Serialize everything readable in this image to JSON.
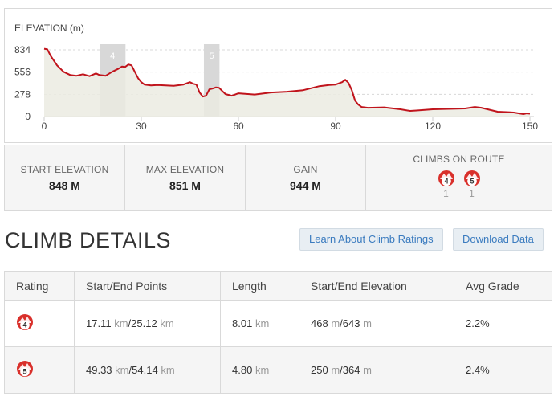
{
  "elevation_chart": {
    "title": "ELEVATION (m)",
    "colors": {
      "line": "#c0141c",
      "fill": "#ebebe2",
      "climb_band": "#d8d8d8",
      "grid": "#d8d8d8"
    }
  },
  "chart_data": {
    "type": "area",
    "title": "ELEVATION (m)",
    "xlabel": "",
    "ylabel": "",
    "xlim": [
      0,
      150
    ],
    "ylim": [
      0,
      834
    ],
    "x_ticks": [
      "0",
      "30",
      "60",
      "90",
      "120",
      "150"
    ],
    "y_ticks": [
      "0",
      "278",
      "556",
      "834"
    ],
    "grid": true,
    "series": [
      {
        "x": [
          0,
          1,
          2,
          4,
          6,
          8,
          10,
          12,
          14,
          16,
          17,
          19,
          21,
          23,
          24,
          25,
          26,
          27,
          28,
          29,
          30,
          31,
          33,
          35,
          40,
          43,
          45,
          46,
          47,
          48,
          49,
          50,
          51,
          52,
          53,
          54,
          55,
          56,
          58,
          60,
          65,
          70,
          75,
          80,
          85,
          88,
          90,
          92,
          93,
          94,
          95,
          96,
          97,
          98,
          100,
          105,
          110,
          113,
          115,
          120,
          125,
          130,
          133,
          135,
          140,
          145,
          148,
          149,
          150
        ],
        "y": [
          848,
          840,
          760,
          640,
          560,
          520,
          510,
          530,
          505,
          540,
          520,
          510,
          560,
          600,
          625,
          620,
          651,
          640,
          560,
          480,
          430,
          400,
          390,
          395,
          385,
          400,
          430,
          410,
          400,
          300,
          250,
          260,
          340,
          350,
          364,
          360,
          320,
          280,
          260,
          290,
          275,
          300,
          310,
          330,
          380,
          395,
          400,
          430,
          460,
          420,
          330,
          200,
          150,
          120,
          110,
          115,
          90,
          70,
          75,
          90,
          95,
          100,
          120,
          110,
          60,
          50,
          30,
          40,
          35
        ]
      }
    ],
    "climb_regions": [
      {
        "label": "4",
        "start_km": 17.11,
        "end_km": 25.12
      },
      {
        "label": "5",
        "start_km": 49.33,
        "end_km": 54.14
      }
    ]
  },
  "stats": {
    "start_elevation": {
      "label": "START ELEVATION",
      "value": "848 M"
    },
    "max_elevation": {
      "label": "MAX ELEVATION",
      "value": "851 M"
    },
    "gain": {
      "label": "GAIN",
      "value": "944 M"
    },
    "climbs_on_route": {
      "label": "CLIMBS ON ROUTE",
      "climbs": [
        {
          "category": "4",
          "count": "1"
        },
        {
          "category": "5",
          "count": "1"
        }
      ]
    }
  },
  "climb_details": {
    "heading": "CLIMB DETAILS",
    "learn_button": "Learn About Climb Ratings",
    "download_button": "Download Data",
    "columns": [
      "Rating",
      "Start/End Points",
      "Length",
      "Start/End Elevation",
      "Avg Grade"
    ],
    "rows": [
      {
        "rating": "4",
        "start": "17.11",
        "end": "25.12",
        "dist_unit": "km",
        "length": "8.01",
        "start_elev": "468",
        "end_elev": "643",
        "elev_unit": "m",
        "grade": "2.2%"
      },
      {
        "rating": "5",
        "start": "49.33",
        "end": "54.14",
        "dist_unit": "km",
        "length": "4.80",
        "start_elev": "250",
        "end_elev": "364",
        "elev_unit": "m",
        "grade": "2.4%"
      }
    ],
    "separator": "/",
    "badge_color": "#d9302b"
  }
}
